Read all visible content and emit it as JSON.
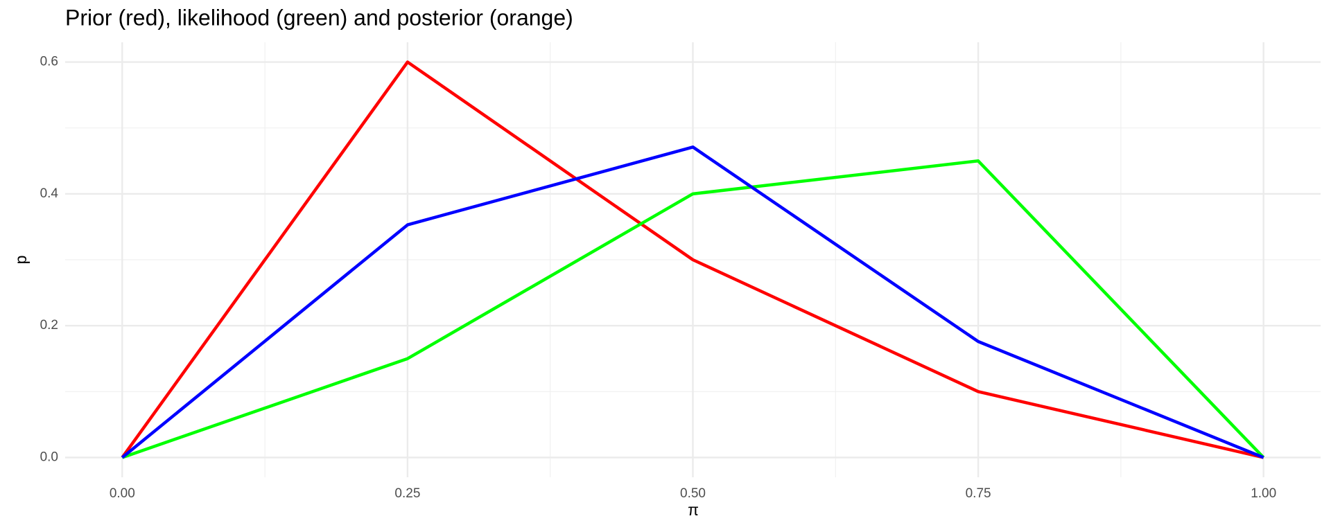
{
  "chart_data": {
    "type": "line",
    "title": "Prior (red), likelihood (green) and posterior (orange)",
    "x_label": "π",
    "y_label": "p",
    "x": [
      0,
      0.25,
      0.5,
      0.75,
      1
    ],
    "series": [
      {
        "color": "#ff0000",
        "values": [
          0,
          0.6,
          0.3,
          0.1,
          0
        ]
      },
      {
        "color": "#00ff00",
        "values": [
          0,
          0.15,
          0.4,
          0.45,
          0
        ]
      },
      {
        "color": "#0000ff",
        "values": [
          0,
          0.353,
          0.471,
          0.176,
          0
        ]
      }
    ],
    "xlim": [
      -0.05,
      1.05
    ],
    "ylim": [
      -0.03,
      0.63
    ],
    "xticks": [
      {
        "value": 0,
        "label": "0.00"
      },
      {
        "value": 0.25,
        "label": "0.25"
      },
      {
        "value": 0.5,
        "label": "0.50"
      },
      {
        "value": 0.75,
        "label": "0.75"
      },
      {
        "value": 1,
        "label": "1.00"
      }
    ],
    "yticks": [
      {
        "value": 0,
        "label": "0.0"
      },
      0.2,
      0.4,
      0.6
    ],
    "grid": true
  }
}
